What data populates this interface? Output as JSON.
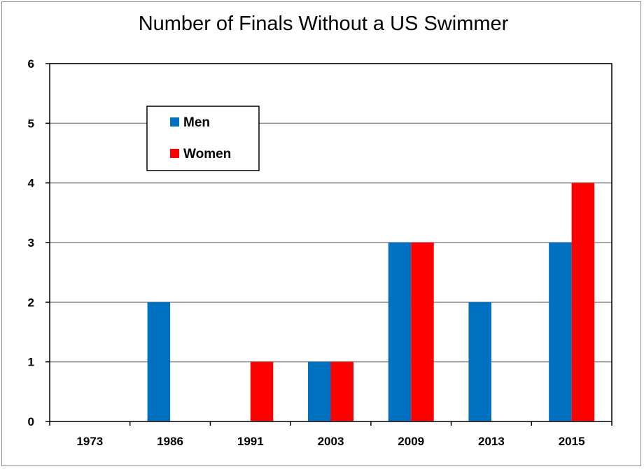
{
  "chart_data": {
    "type": "bar",
    "title": "Number of Finals Without a US Swimmer",
    "xlabel": "",
    "ylabel": "",
    "categories": [
      "1973",
      "1986",
      "1991",
      "2003",
      "2009",
      "2013",
      "2015"
    ],
    "series": [
      {
        "name": "Men",
        "color": "#0070c0",
        "values": [
          0,
          2,
          0,
          1,
          3,
          2,
          3
        ]
      },
      {
        "name": "Women",
        "color": "#ff0000",
        "values": [
          0,
          0,
          1,
          1,
          3,
          0,
          4
        ]
      }
    ],
    "ylim": [
      0,
      6
    ],
    "yticks": [
      0,
      1,
      2,
      3,
      4,
      5,
      6
    ],
    "grid": true,
    "legend_position": "top-left"
  }
}
